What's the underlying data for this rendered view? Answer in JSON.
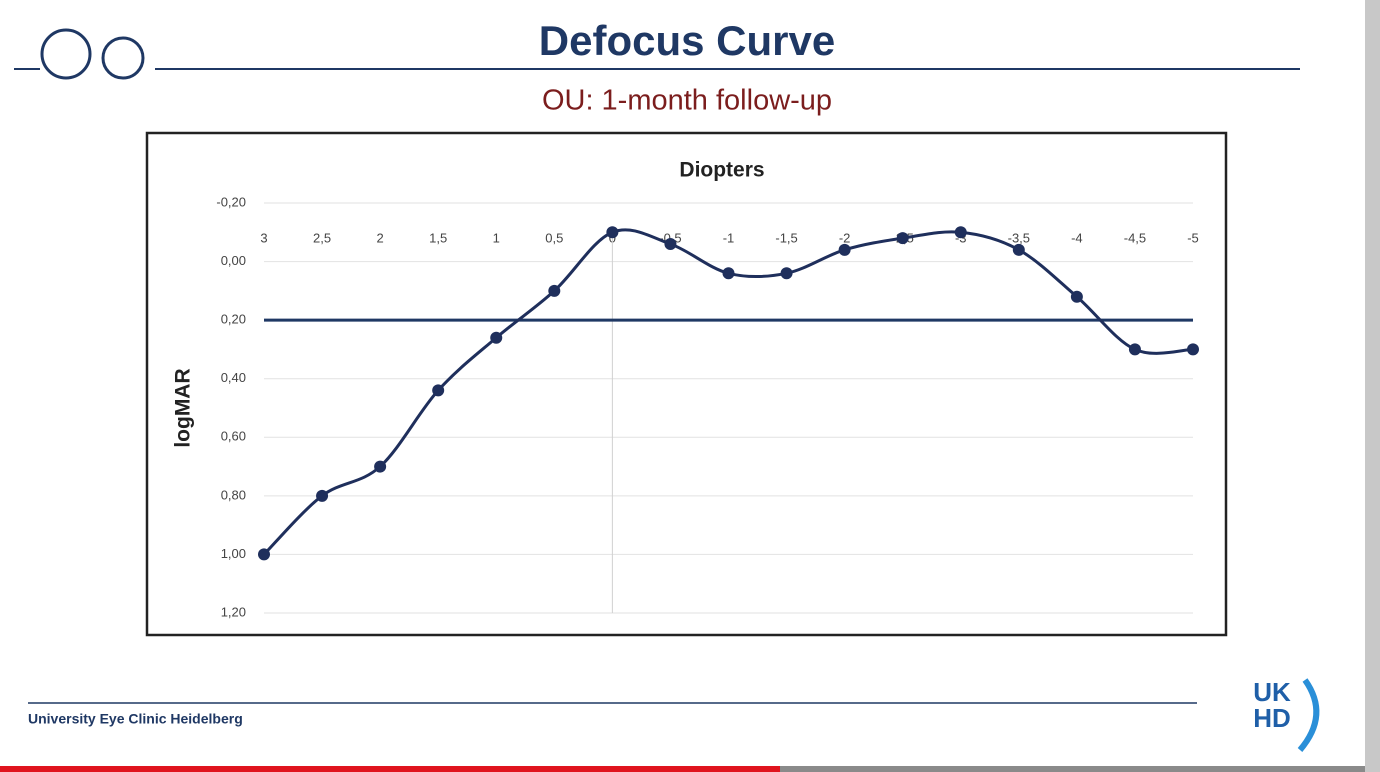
{
  "chart_data": {
    "type": "line",
    "title": "Defocus Curve",
    "subtitle": "OU: 1-month follow-up",
    "x_label": "Diopters",
    "y_label": "logMAR",
    "x": [
      3,
      2.5,
      2,
      1.5,
      1,
      0.5,
      0,
      -0.5,
      -1,
      -1.5,
      -2,
      -2.5,
      -3,
      -3.5,
      -4,
      -4.5,
      -5
    ],
    "series": [
      {
        "color": "#1f2f5c",
        "values": [
          1.0,
          0.8,
          0.7,
          0.44,
          0.26,
          0.1,
          -0.1,
          -0.06,
          0.04,
          0.04,
          -0.04,
          -0.08,
          -0.1,
          -0.04,
          0.12,
          0.3,
          0.3
        ]
      }
    ],
    "reference_line": 0.2,
    "xlim": [
      3,
      -5
    ],
    "xticks": [
      3,
      {
        "value": 2.5,
        "label": "2,5"
      },
      2,
      {
        "value": 1.5,
        "label": "1,5"
      },
      1,
      {
        "value": 0.5,
        "label": "0,5"
      },
      0,
      {
        "value": -0.5,
        "label": "-0,5"
      },
      -1,
      {
        "value": -1.5,
        "label": "-1,5"
      },
      -2,
      {
        "value": -2.5,
        "label": "-2,5"
      },
      -3,
      {
        "value": -3.5,
        "label": "-3,5"
      },
      -4,
      {
        "value": -4.5,
        "label": "-4,5"
      },
      -5
    ],
    "ylim": [
      -0.2,
      1.2
    ],
    "yticks": [
      {
        "value": -0.2,
        "label": "-0,20"
      },
      {
        "value": 0,
        "label": "0,00"
      },
      {
        "value": 0.2,
        "label": "0,20"
      },
      {
        "value": 0.4,
        "label": "0,40"
      },
      {
        "value": 0.6,
        "label": "0,60"
      },
      {
        "value": 0.8,
        "label": "0,80"
      },
      {
        "value": 1.0,
        "label": "1,00"
      },
      {
        "value": 1.2,
        "label": "1,20"
      }
    ],
    "grid": true
  },
  "footer": "University Eye Clinic Heidelberg",
  "logo": [
    "UK",
    "HD"
  ]
}
